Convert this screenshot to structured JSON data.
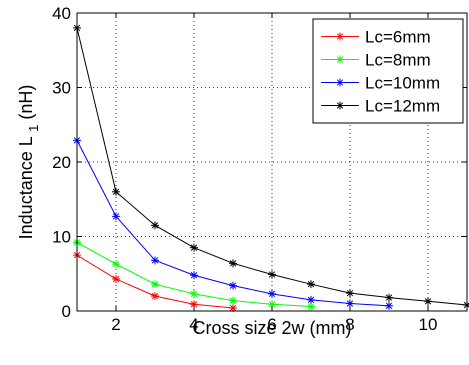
{
  "chart_data": {
    "type": "line",
    "xlabel": "Cross size 2w (mm)",
    "ylabel": "Inductance L",
    "ylabel_subscript": "1",
    "ylabel_unit": "(nH)",
    "xlim": [
      1,
      11
    ],
    "ylim": [
      0,
      40
    ],
    "xticks": [
      2,
      4,
      6,
      8,
      10
    ],
    "yticks": [
      0,
      10,
      20,
      30,
      40
    ],
    "grid": true,
    "legend_position": "top-right",
    "marker": "asterisk",
    "series": [
      {
        "name": "Lc=6mm",
        "color": "#ff0000",
        "x": [
          1,
          2,
          3,
          4,
          5
        ],
        "values": [
          7.5,
          4.3,
          2.0,
          0.9,
          0.4
        ]
      },
      {
        "name": "Lc=8mm",
        "color": "#00ff00",
        "x": [
          1,
          2,
          3,
          4,
          5,
          6,
          7
        ],
        "values": [
          9.2,
          6.3,
          3.6,
          2.3,
          1.4,
          0.9,
          0.6
        ]
      },
      {
        "name": "Lc=10mm",
        "color": "#0000ff",
        "x": [
          1,
          2,
          3,
          4,
          5,
          6,
          7,
          8,
          9
        ],
        "values": [
          22.9,
          12.7,
          6.8,
          4.8,
          3.4,
          2.3,
          1.5,
          1.0,
          0.7
        ]
      },
      {
        "name": "Lc=12mm",
        "color": "#000000",
        "x": [
          1,
          2,
          3,
          4,
          5,
          6,
          7,
          8,
          9,
          10,
          11
        ],
        "values": [
          38.0,
          16.0,
          11.5,
          8.5,
          6.4,
          4.9,
          3.6,
          2.4,
          1.8,
          1.3,
          0.8
        ]
      }
    ]
  }
}
